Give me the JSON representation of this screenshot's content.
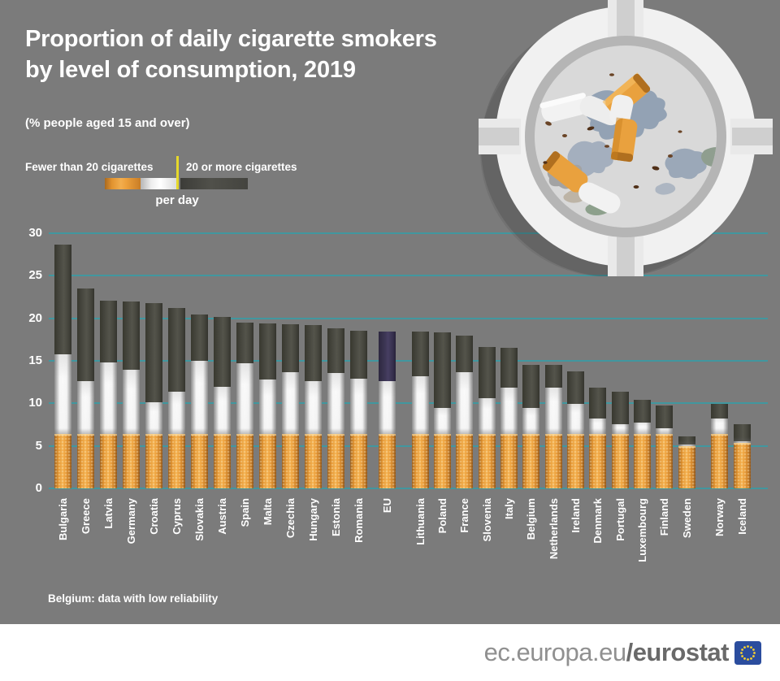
{
  "header": {
    "title_line1": "Proportion of daily cigarette smokers",
    "title_line2": "by level of consumption, 2019",
    "subtitle": "(% people aged 15 and over)"
  },
  "legend": {
    "fewer": "Fewer than 20 cigarettes",
    "more": "20 or more cigarettes",
    "per_day": "per day"
  },
  "note": "Belgium: data with low reliability",
  "footer": {
    "site": "ec.europa.eu",
    "brand": "/eurostat"
  },
  "colors": {
    "background": "#7b7b7b",
    "gridline": "#3b9aa3",
    "bar_dark": "#46463f",
    "bar_dark_eu": "#3a3450",
    "bar_orange": "#e9a13e",
    "bar_white": "#f2f2f2",
    "legend_divider": "#e6d82a",
    "flag_blue": "#2b4d9e",
    "flag_stars": "#f8d12e"
  },
  "chart_data": {
    "type": "bar",
    "stacked": true,
    "title": "Proportion of daily cigarette smokers by level of consumption, 2019",
    "unit_note": "% people aged 15 and over",
    "ylim": [
      0,
      30
    ],
    "yticks": [
      0,
      5,
      10,
      15,
      20,
      25,
      30
    ],
    "grid": true,
    "legend_position": "top-left",
    "series_names": [
      "Fewer than 20 cigarettes per day",
      "20 or more cigarettes per day"
    ],
    "groups": [
      {
        "id": "eu-members-above-average",
        "bars": [
          {
            "label": "Bulgaria",
            "fewer": 15.8,
            "more": 12.9
          },
          {
            "label": "Greece",
            "fewer": 12.6,
            "more": 10.9
          },
          {
            "label": "Latvia",
            "fewer": 14.8,
            "more": 7.3
          },
          {
            "label": "Germany",
            "fewer": 13.9,
            "more": 8.1
          },
          {
            "label": "Croatia",
            "fewer": 10.1,
            "more": 11.7
          },
          {
            "label": "Cyprus",
            "fewer": 11.4,
            "more": 9.8
          },
          {
            "label": "Slovakia",
            "fewer": 15.0,
            "more": 5.4
          },
          {
            "label": "Austria",
            "fewer": 11.9,
            "more": 8.3
          },
          {
            "label": "Spain",
            "fewer": 14.7,
            "more": 4.8
          },
          {
            "label": "Malta",
            "fewer": 12.8,
            "more": 6.6
          },
          {
            "label": "Czechia",
            "fewer": 13.7,
            "more": 5.6
          },
          {
            "label": "Hungary",
            "fewer": 12.6,
            "more": 6.6
          },
          {
            "label": "Estonia",
            "fewer": 13.6,
            "more": 5.2
          },
          {
            "label": "Romania",
            "fewer": 12.9,
            "more": 5.6
          }
        ]
      },
      {
        "id": "eu-aggregate",
        "bars": [
          {
            "label": "EU",
            "fewer": 12.6,
            "more": 5.8,
            "highlight": true
          }
        ]
      },
      {
        "id": "eu-members-below-average",
        "bars": [
          {
            "label": "Lithuania",
            "fewer": 13.2,
            "more": 5.2
          },
          {
            "label": "Poland",
            "fewer": 9.5,
            "more": 8.8
          },
          {
            "label": "France",
            "fewer": 13.7,
            "more": 4.3
          },
          {
            "label": "Slovenia",
            "fewer": 10.6,
            "more": 6.0
          },
          {
            "label": "Italy",
            "fewer": 11.8,
            "more": 4.7
          },
          {
            "label": "Belgium",
            "fewer": 9.5,
            "more": 5.0
          },
          {
            "label": "Netherlands",
            "fewer": 11.8,
            "more": 2.7
          },
          {
            "label": "Ireland",
            "fewer": 9.9,
            "more": 3.9
          },
          {
            "label": "Denmark",
            "fewer": 8.2,
            "more": 3.6
          },
          {
            "label": "Portugal",
            "fewer": 7.5,
            "more": 3.9
          },
          {
            "label": "Luxembourg",
            "fewer": 7.7,
            "more": 2.7
          },
          {
            "label": "Finland",
            "fewer": 7.1,
            "more": 2.6
          },
          {
            "label": "Sweden",
            "fewer": 5.2,
            "more": 0.9
          }
        ]
      },
      {
        "id": "efta",
        "bars": [
          {
            "label": "Norway",
            "fewer": 8.2,
            "more": 1.7
          },
          {
            "label": "Iceland",
            "fewer": 5.5,
            "more": 2.0
          }
        ]
      }
    ]
  }
}
